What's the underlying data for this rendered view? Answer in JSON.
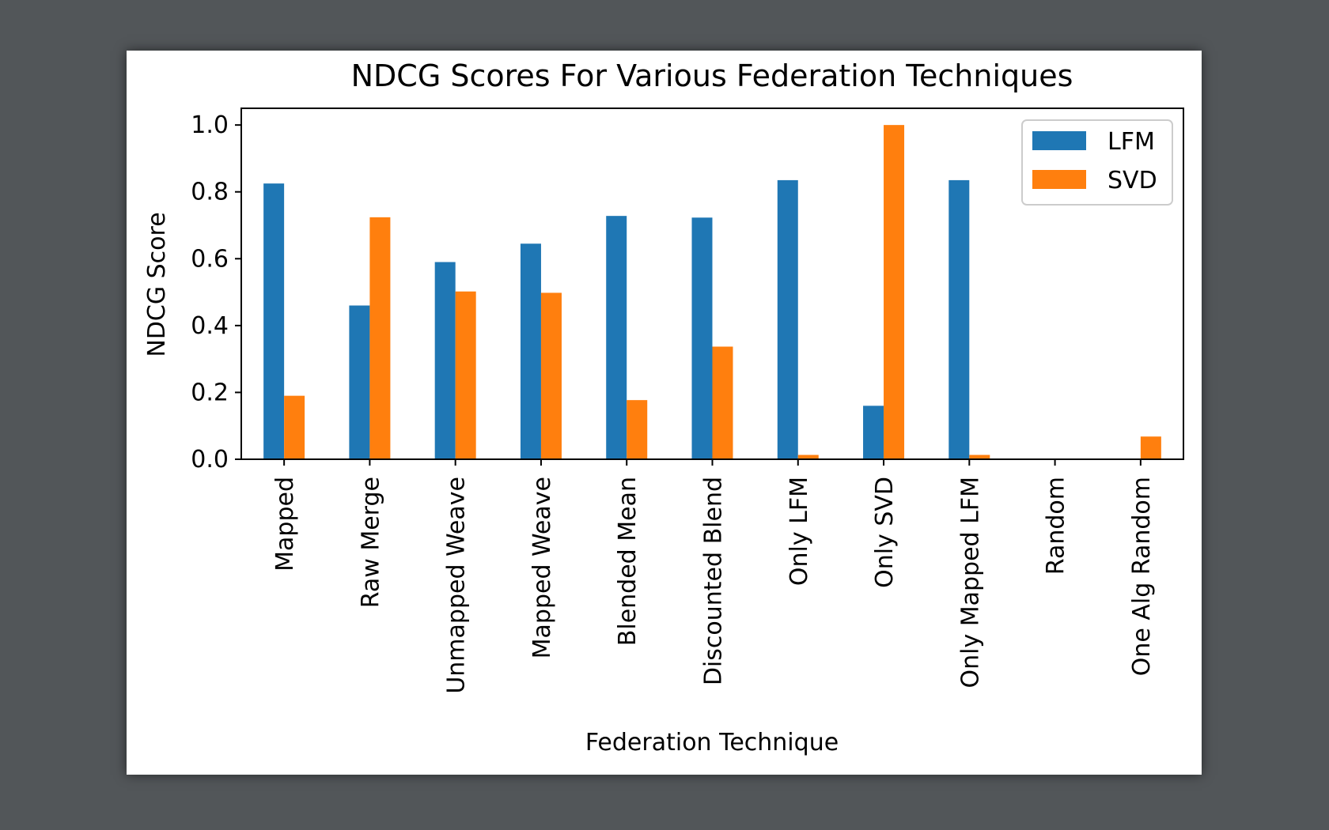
{
  "chart_data": {
    "type": "bar",
    "title": "NDCG Scores For Various Federation Techniques",
    "xlabel": "Federation Technique",
    "ylabel": "NDCG Score",
    "ylim": [
      0,
      1.05
    ],
    "yticks": [
      "0.0",
      "0.2",
      "0.4",
      "0.6",
      "0.8",
      "1.0"
    ],
    "categories": [
      "Mapped",
      "Raw Merge",
      "Unmapped Weave",
      "Mapped Weave",
      "Blended Mean",
      "Discounted Blend",
      "Only LFM",
      "Only SVD",
      "Only Mapped LFM",
      "Random",
      "One Alg Random"
    ],
    "series": [
      {
        "name": "LFM",
        "color": "#1f77b4",
        "values": [
          0.825,
          0.46,
          0.59,
          0.645,
          0.728,
          0.723,
          0.835,
          0.16,
          0.835,
          0.0,
          0.0
        ]
      },
      {
        "name": "SVD",
        "color": "#ff7f0e",
        "values": [
          0.19,
          0.724,
          0.502,
          0.498,
          0.177,
          0.337,
          0.013,
          1.0,
          0.013,
          0.0,
          0.068
        ]
      }
    ],
    "grid": false,
    "legend": "top-right"
  }
}
